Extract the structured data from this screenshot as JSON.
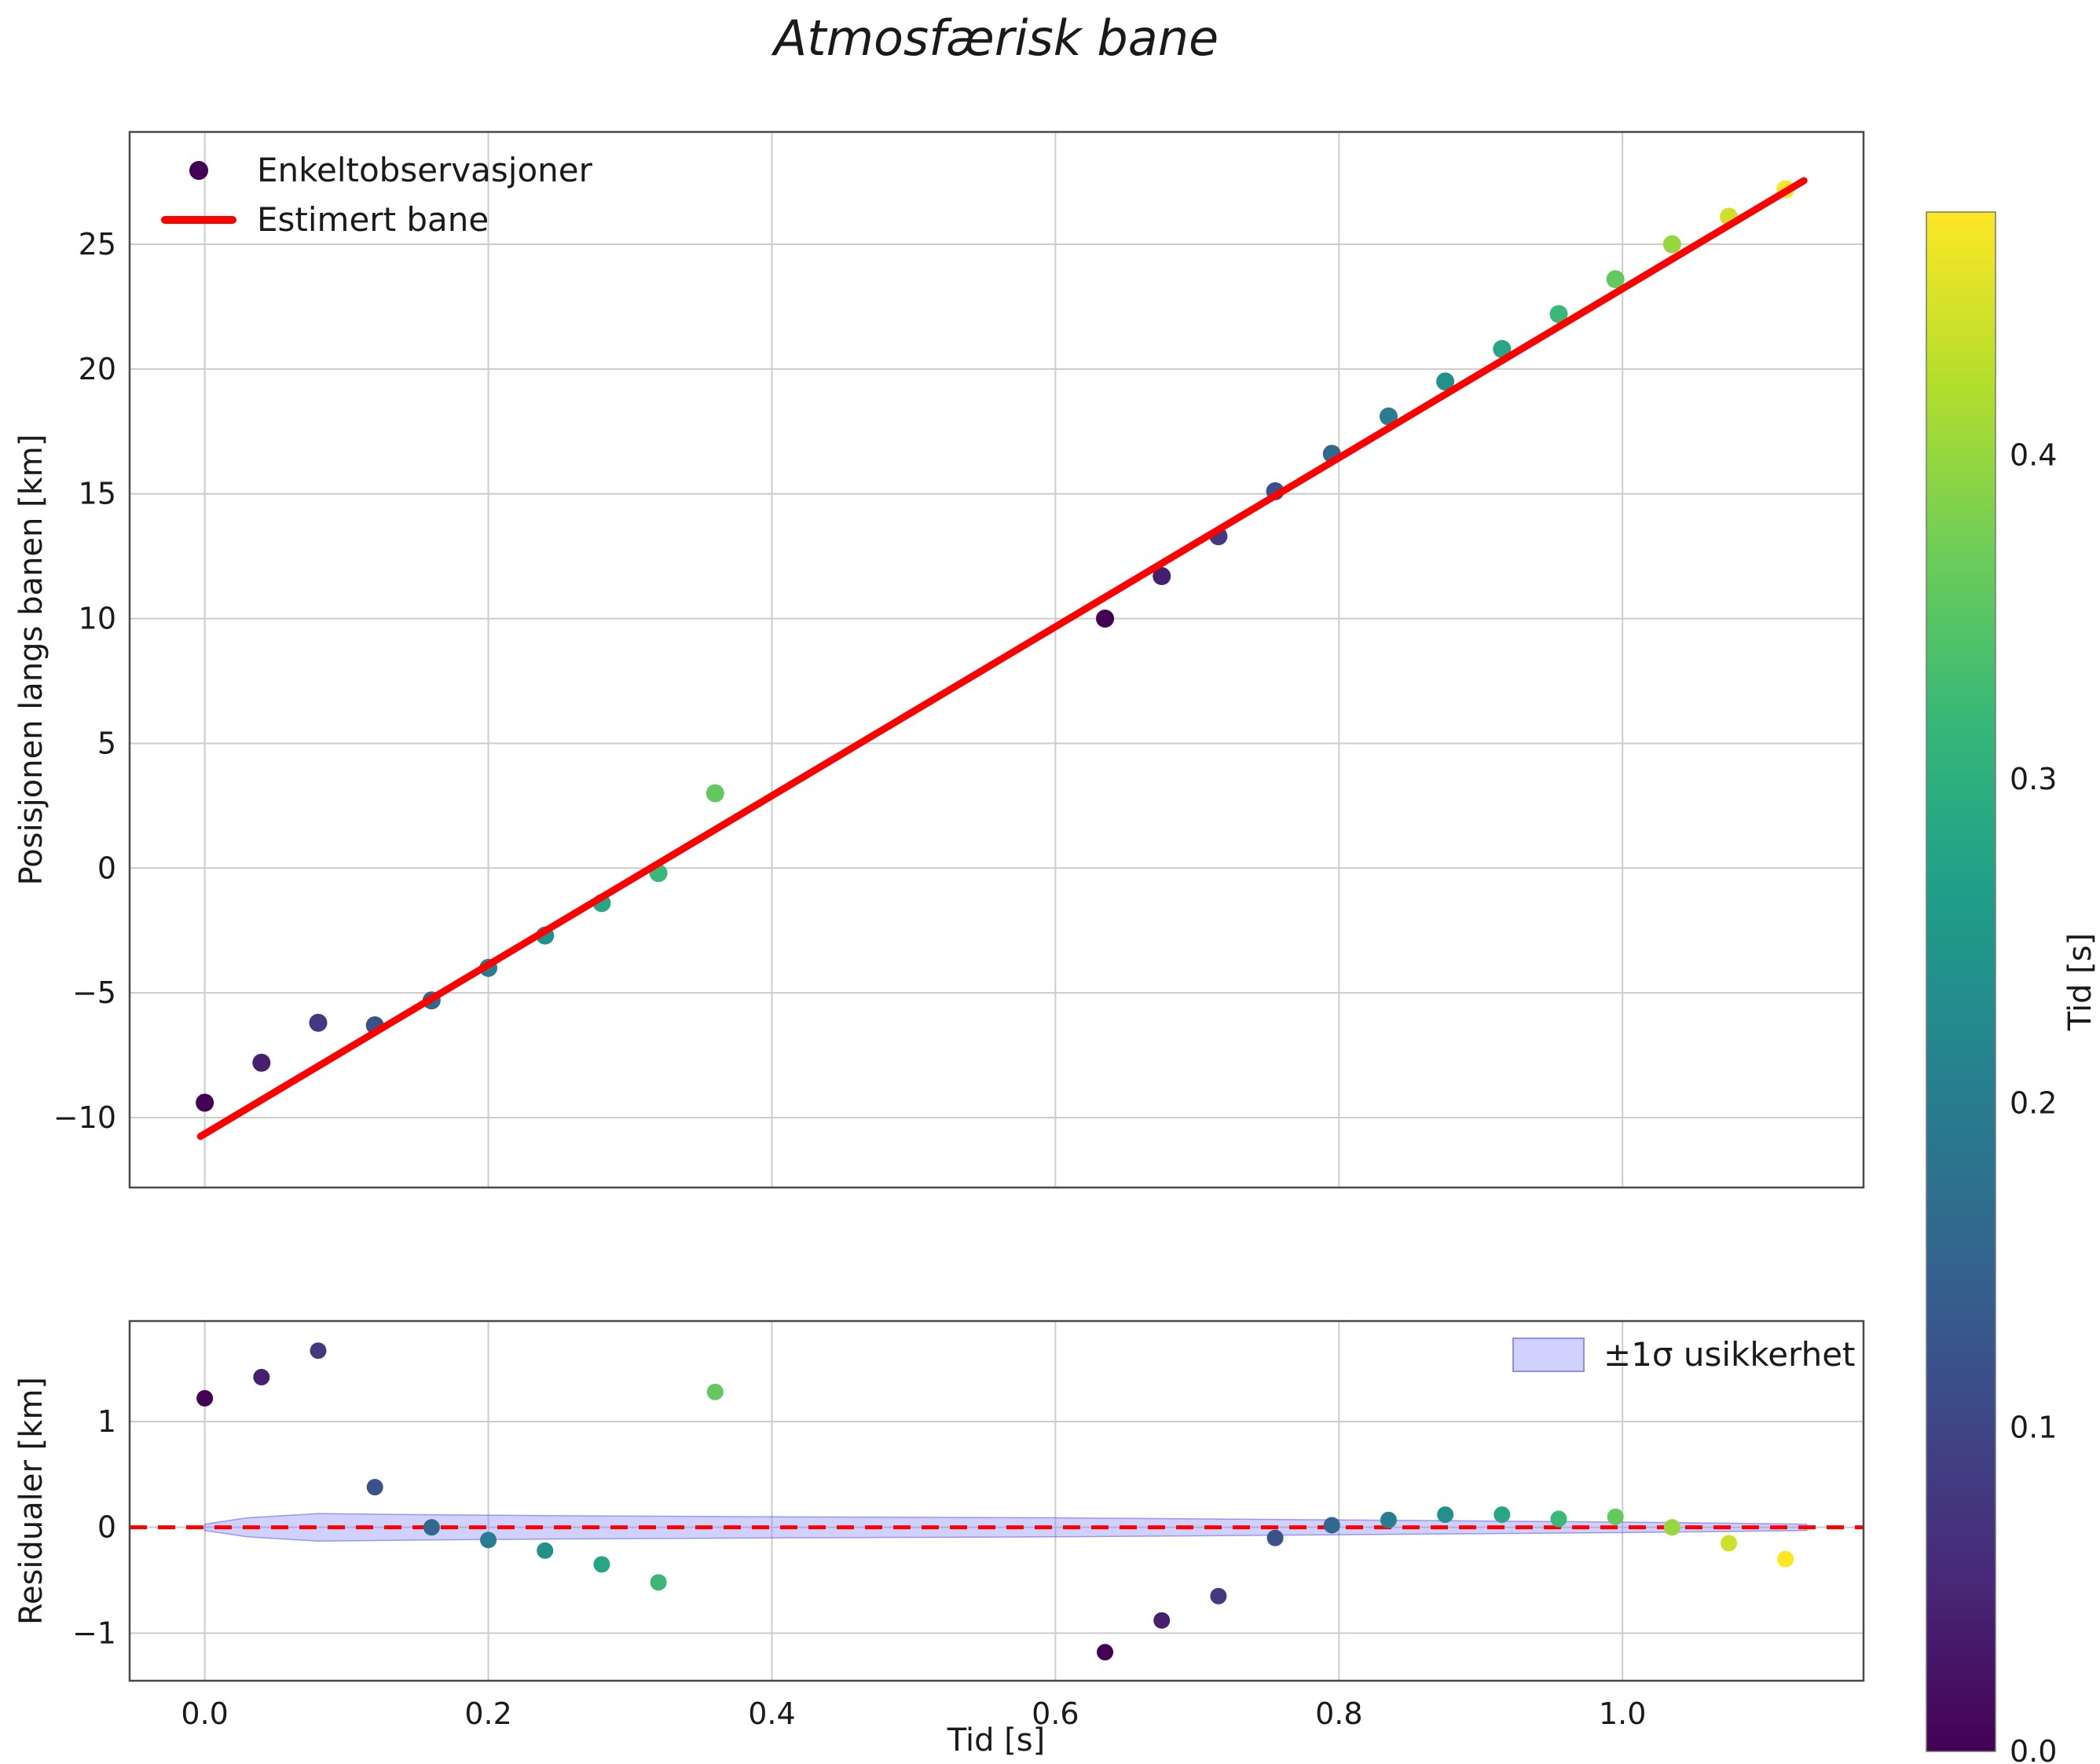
{
  "figure": {
    "title": "Atmosfærisk bane",
    "background_color": "#ffffff",
    "grid_color": "#cccccc",
    "spine_color": "#4a4a4a",
    "text_color": "#1a1a1a"
  },
  "chart_data": [
    {
      "type": "scatter",
      "title": "Atmosfærisk bane",
      "xlabel": "",
      "ylabel": "Posisjonen langs banen [km]",
      "xlim": [
        -0.053,
        1.17
      ],
      "ylim": [
        -12.8,
        29.5
      ],
      "xticks": [
        0.0,
        0.2,
        0.4,
        0.6,
        0.8,
        1.0
      ],
      "yticks": [
        -10,
        -5,
        0,
        5,
        10,
        15,
        20,
        25
      ],
      "grid": true,
      "legend_position": "upper left",
      "legend_scatter_label": "Enkeltobservasjoner",
      "legend_line_label": "Estimert bane",
      "points_note": "each point is [time_x_s, position_km, colorbar_time_s]",
      "points": [
        [
          0.0,
          -9.4,
          0.0
        ],
        [
          0.04,
          -7.8,
          0.04
        ],
        [
          0.08,
          -6.2,
          0.08
        ],
        [
          0.12,
          -6.3,
          0.12
        ],
        [
          0.16,
          -5.3,
          0.16
        ],
        [
          0.2,
          -4.0,
          0.2
        ],
        [
          0.24,
          -2.7,
          0.24
        ],
        [
          0.28,
          -1.4,
          0.28
        ],
        [
          0.32,
          -0.2,
          0.32
        ],
        [
          0.36,
          3.0,
          0.36
        ],
        [
          0.635,
          10.0,
          0.0
        ],
        [
          0.675,
          11.7,
          0.04
        ],
        [
          0.715,
          13.3,
          0.08
        ],
        [
          0.755,
          15.1,
          0.12
        ],
        [
          0.795,
          16.6,
          0.16
        ],
        [
          0.835,
          18.1,
          0.2
        ],
        [
          0.875,
          19.5,
          0.24
        ],
        [
          0.915,
          20.8,
          0.28
        ],
        [
          0.955,
          22.2,
          0.32
        ],
        [
          0.995,
          23.6,
          0.36
        ],
        [
          1.035,
          25.0,
          0.4
        ],
        [
          1.075,
          26.1,
          0.44
        ],
        [
          1.115,
          27.2,
          0.475
        ]
      ],
      "fit_line": {
        "label": "Estimert bane",
        "color": "#ff0000",
        "x": [
          -0.003,
          1.128
        ],
        "y": [
          -10.75,
          27.55
        ]
      }
    },
    {
      "type": "scatter",
      "xlabel": "Tid [s]",
      "ylabel": "Residualer [km]",
      "xlim": [
        -0.053,
        1.17
      ],
      "ylim": [
        -1.45,
        1.95
      ],
      "xticks": [
        0.0,
        0.2,
        0.4,
        0.6,
        0.8,
        1.0
      ],
      "yticks": [
        -1,
        0,
        1
      ],
      "grid": true,
      "legend_band_label": "±1σ usikkerhet",
      "points_note": "each point is [time_x_s, residual_km, colorbar_time_s]",
      "points": [
        [
          0.0,
          1.22,
          0.0
        ],
        [
          0.04,
          1.42,
          0.04
        ],
        [
          0.08,
          1.67,
          0.08
        ],
        [
          0.12,
          0.38,
          0.12
        ],
        [
          0.16,
          0.0,
          0.16
        ],
        [
          0.2,
          -0.12,
          0.2
        ],
        [
          0.24,
          -0.22,
          0.24
        ],
        [
          0.28,
          -0.35,
          0.28
        ],
        [
          0.32,
          -0.52,
          0.32
        ],
        [
          0.36,
          1.28,
          0.36
        ],
        [
          0.635,
          -1.18,
          0.0
        ],
        [
          0.675,
          -0.88,
          0.04
        ],
        [
          0.715,
          -0.65,
          0.08
        ],
        [
          0.755,
          -0.1,
          0.12
        ],
        [
          0.795,
          0.02,
          0.16
        ],
        [
          0.835,
          0.07,
          0.2
        ],
        [
          0.875,
          0.12,
          0.24
        ],
        [
          0.915,
          0.12,
          0.28
        ],
        [
          0.955,
          0.08,
          0.32
        ],
        [
          0.995,
          0.1,
          0.36
        ],
        [
          1.035,
          0.0,
          0.4
        ],
        [
          1.075,
          -0.15,
          0.44
        ],
        [
          1.115,
          -0.3,
          0.475
        ]
      ],
      "zero_line": {
        "color": "#ff0000",
        "style": "dashed",
        "y": 0
      },
      "band": {
        "label": "±1σ usikkerhet",
        "fill_color": "rgba(124,124,255,0.35)",
        "edge_color": "rgba(90,90,230,0.55)",
        "x": [
          0.0,
          0.03,
          0.08,
          0.15,
          0.25,
          0.4,
          0.6,
          0.8,
          1.0,
          1.13
        ],
        "sigma": [
          0.03,
          0.09,
          0.13,
          0.12,
          0.11,
          0.1,
          0.09,
          0.07,
          0.05,
          0.03
        ]
      }
    }
  ],
  "colorbar": {
    "label": "Tid [s]",
    "vmin": 0.0,
    "vmax": 0.475,
    "ticks": [
      0.0,
      0.1,
      0.2,
      0.3,
      0.4
    ],
    "colormap": "viridis",
    "stops": [
      "#440154",
      "#482878",
      "#3e4989",
      "#31688e",
      "#26828e",
      "#1f9e89",
      "#35b779",
      "#6dcd59",
      "#b4de2c",
      "#fde725"
    ]
  }
}
